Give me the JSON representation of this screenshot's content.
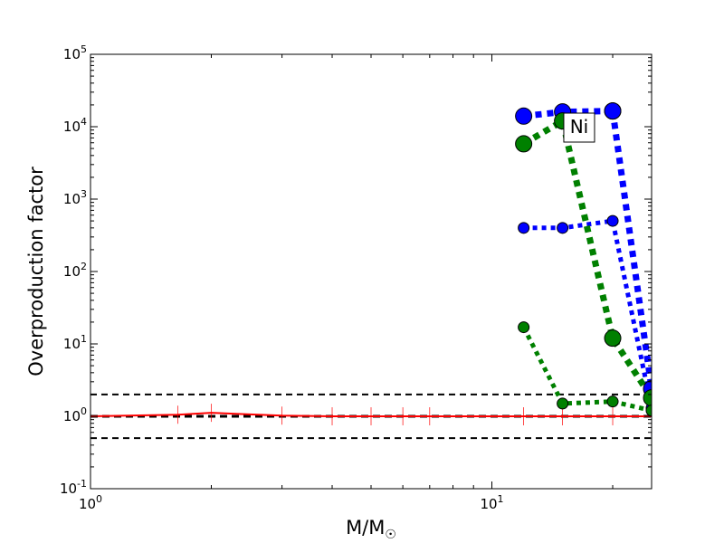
{
  "chart_data": {
    "type": "line",
    "title": "",
    "xlabel": "M/M",
    "xlabel_sub": "☉",
    "ylabel": "Overproduction factor",
    "xscale": "log",
    "yscale": "log",
    "xlim": [
      1,
      25
    ],
    "ylim": [
      0.1,
      100000
    ],
    "x_ticks": [
      {
        "base": "10",
        "exp": "0",
        "value": 1
      },
      {
        "base": "10",
        "exp": "1",
        "value": 10
      }
    ],
    "y_ticks": [
      {
        "base": "10",
        "exp": "-1",
        "value": 0.1
      },
      {
        "base": "10",
        "exp": "0",
        "value": 1
      },
      {
        "base": "10",
        "exp": "1",
        "value": 10
      },
      {
        "base": "10",
        "exp": "2",
        "value": 100
      },
      {
        "base": "10",
        "exp": "3",
        "value": 1000
      },
      {
        "base": "10",
        "exp": "4",
        "value": 10000
      },
      {
        "base": "10",
        "exp": "5",
        "value": 100000
      }
    ],
    "reference_lines": [
      {
        "y": 2,
        "color": "#000000",
        "style": "dashed"
      },
      {
        "y": 1,
        "color": "#000000",
        "style": "dashed",
        "bold": true
      },
      {
        "y": 0.5,
        "color": "#000000",
        "style": "dashed"
      }
    ],
    "annotation": {
      "text": "Ni",
      "x": 16.5,
      "y": 10000
    },
    "series": [
      {
        "color": "#ff0000",
        "style": "solid",
        "markers": "vline",
        "x": [
          1,
          1.65,
          2,
          3,
          4,
          5,
          6,
          7,
          12,
          15,
          20,
          25
        ],
        "y": [
          1,
          1.05,
          1.12,
          1.02,
          1.0,
          1.0,
          1.0,
          1.0,
          1.0,
          1.0,
          1.0,
          1.0
        ]
      },
      {
        "color": "#0000ff",
        "style": "dotted",
        "weight": "heavy",
        "x": [
          12,
          15,
          20
        ],
        "y": [
          14000,
          16000,
          16500
        ]
      },
      {
        "color": "#0000ff",
        "style": "dotted",
        "weight": "heavy",
        "x": [
          20,
          25
        ],
        "y": [
          16500,
          2.4
        ]
      },
      {
        "color": "#0000ff",
        "style": "dotted",
        "weight": "medium",
        "x": [
          12,
          15,
          20,
          25
        ],
        "y": [
          400,
          400,
          500,
          1.3
        ]
      },
      {
        "color": "#008000",
        "style": "dotted",
        "weight": "heavy",
        "x": [
          12,
          15,
          20,
          25
        ],
        "y": [
          5800,
          12000,
          12,
          1.8
        ]
      },
      {
        "color": "#008000",
        "style": "dotted",
        "weight": "medium",
        "x": [
          12,
          15,
          20,
          25
        ],
        "y": [
          17,
          1.5,
          1.6,
          1.2
        ]
      }
    ]
  }
}
